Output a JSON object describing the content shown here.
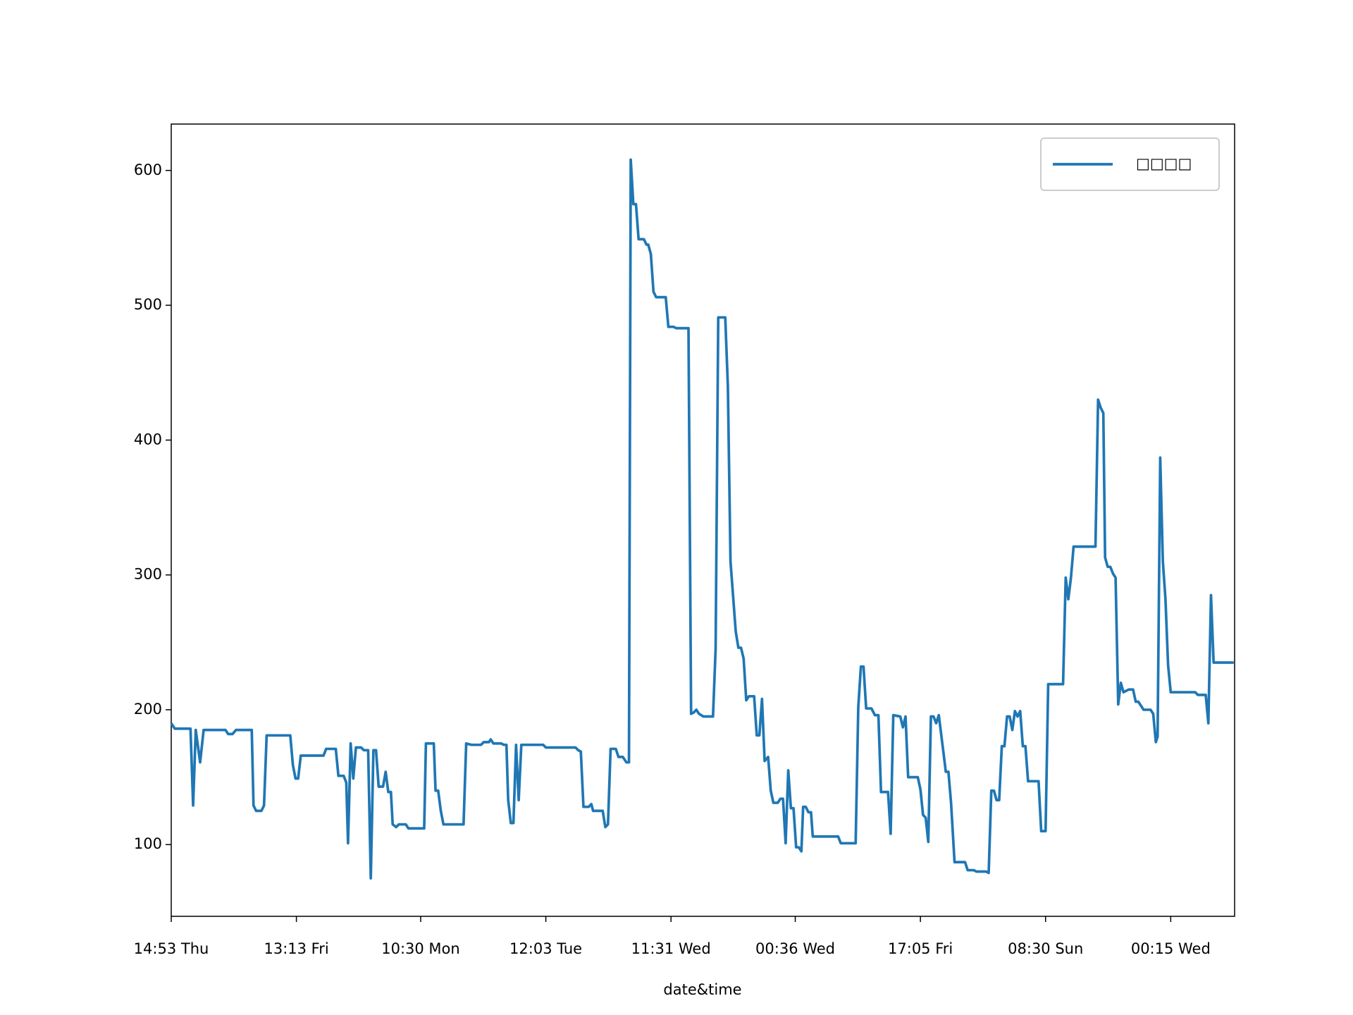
{
  "chart_data": {
    "type": "line",
    "xlabel": "date&time",
    "x": [
      0,
      4,
      22,
      25,
      28,
      33,
      37,
      62,
      65,
      70,
      74,
      92,
      94,
      97,
      103,
      106,
      109,
      136,
      139,
      142,
      145,
      148,
      174,
      177,
      188,
      191,
      197,
      200,
      202,
      205,
      208,
      211,
      217,
      220,
      225,
      228,
      231,
      234,
      237,
      242,
      245,
      248,
      251,
      253,
      257,
      260,
      268,
      271,
      289,
      291,
      300,
      302,
      305,
      308,
      311,
      334,
      337,
      343,
      354,
      357,
      363,
      365,
      368,
      377,
      380,
      383,
      385,
      388,
      391,
      394,
      397,
      400,
      425,
      428,
      462,
      465,
      468,
      471,
      477,
      480,
      482,
      493,
      496,
      499,
      502,
      508,
      511,
      516,
      520,
      523,
      525,
      528,
      531,
      534,
      540,
      543,
      545,
      548,
      551,
      554,
      565,
      568,
      574,
      577,
      591,
      594,
      597,
      600,
      603,
      608,
      619,
      622,
      625,
      633,
      636,
      639,
      645,
      648,
      651,
      654,
      657,
      660,
      666,
      669,
      672,
      675,
      678,
      682,
      685,
      688,
      693,
      696,
      699,
      702,
      705,
      708,
      711,
      714,
      717,
      720,
      722,
      725,
      728,
      731,
      733,
      759,
      762,
      765,
      782,
      785,
      788,
      791,
      794,
      800,
      804,
      808,
      811,
      819,
      822,
      825,
      833,
      836,
      839,
      842,
      853,
      856,
      859,
      862,
      865,
      868,
      871,
      874,
      877,
      882,
      885,
      888,
      891,
      895,
      907,
      910,
      917,
      920,
      931,
      934,
      937,
      940,
      943,
      946,
      949,
      952,
      955,
      958,
      961,
      964,
      967,
      970,
      973,
      976,
      979,
      991,
      994,
      999,
      1002,
      1019,
      1022,
      1025,
      1028,
      1031,
      1056,
      1059,
      1062,
      1065,
      1067,
      1070,
      1073,
      1076,
      1079,
      1082,
      1085,
      1088,
      1094,
      1099,
      1102,
      1105,
      1108,
      1111,
      1119,
      1122,
      1125,
      1127,
      1130,
      1133,
      1136,
      1139,
      1142,
      1170,
      1173,
      1182,
      1185,
      1188,
      1191,
      1214
    ],
    "series": [
      {
        "name": "□□□□",
        "color": "#1f77b4",
        "values": [
          190,
          186,
          186,
          129,
          185,
          161,
          185,
          185,
          182,
          182,
          185,
          185,
          129,
          125,
          125,
          129,
          181,
          181,
          159,
          149,
          149,
          166,
          166,
          171,
          171,
          151,
          151,
          146,
          101,
          175,
          149,
          172,
          172,
          170,
          170,
          75,
          170,
          170,
          143,
          143,
          154,
          139,
          139,
          115,
          113,
          115,
          115,
          112,
          112,
          175,
          175,
          140,
          140,
          125,
          115,
          115,
          175,
          174,
          174,
          176,
          176,
          178,
          175,
          175,
          174,
          174,
          133,
          116,
          116,
          174,
          133,
          174,
          174,
          172,
          172,
          170,
          169,
          128,
          128,
          130,
          125,
          125,
          113,
          115,
          171,
          171,
          165,
          165,
          161,
          161,
          608,
          575,
          575,
          549,
          549,
          545,
          545,
          538,
          510,
          506,
          506,
          484,
          484,
          483,
          483,
          197,
          198,
          200,
          197,
          195,
          195,
          245,
          491,
          491,
          440,
          310,
          258,
          246,
          246,
          238,
          207,
          210,
          210,
          181,
          181,
          208,
          162,
          165,
          140,
          131,
          131,
          134,
          134,
          101,
          155,
          127,
          127,
          98,
          98,
          95,
          128,
          128,
          124,
          124,
          106,
          106,
          106,
          101,
          101,
          202,
          232,
          232,
          201,
          201,
          196,
          196,
          139,
          139,
          108,
          196,
          195,
          187,
          195,
          150,
          150,
          141,
          122,
          120,
          102,
          195,
          195,
          190,
          196,
          170,
          154,
          154,
          131,
          87,
          87,
          81,
          81,
          80,
          80,
          79,
          140,
          140,
          133,
          133,
          173,
          173,
          195,
          195,
          185,
          199,
          195,
          199,
          173,
          173,
          147,
          147,
          110,
          110,
          219,
          219,
          298,
          282,
          298,
          321,
          321,
          430,
          424,
          420,
          313,
          306,
          306,
          301,
          298,
          204,
          220,
          213,
          215,
          215,
          206,
          206,
          203,
          200,
          200,
          197,
          176,
          180,
          387,
          310,
          282,
          233,
          213,
          213,
          211,
          211,
          190,
          285,
          235,
          235
        ]
      }
    ],
    "xlim": [
      0,
      1215
    ],
    "xticks": [
      {
        "value": 0,
        "label": "14:53 Thu"
      },
      {
        "value": 143,
        "label": "13:13 Fri"
      },
      {
        "value": 285,
        "label": "10:30 Mon"
      },
      {
        "value": 428,
        "label": "12:03 Tue"
      },
      {
        "value": 571,
        "label": "11:31 Wed"
      },
      {
        "value": 713,
        "label": "00:36 Wed"
      },
      {
        "value": 856,
        "label": "17:05 Fri"
      },
      {
        "value": 999,
        "label": "08:30 Sun"
      },
      {
        "value": 1142,
        "label": "00:15 Wed"
      }
    ],
    "ylim": [
      46.8,
      634.4
    ],
    "yticks": [
      100,
      200,
      300,
      400,
      500,
      600
    ],
    "legend": "upper right"
  }
}
